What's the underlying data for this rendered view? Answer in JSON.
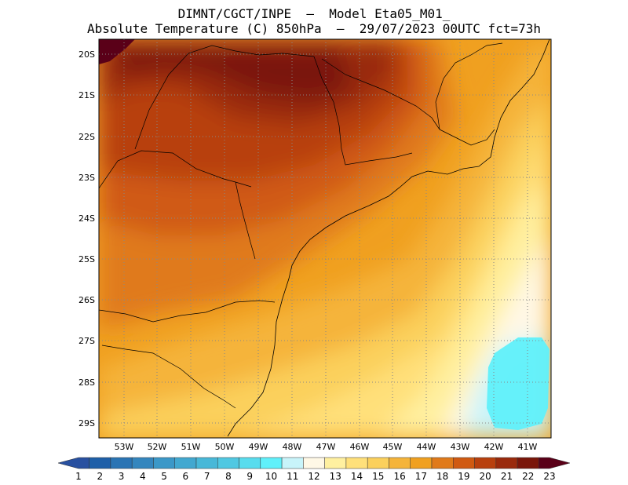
{
  "header": {
    "line1": "DIMNT/CGCT/INPE  –  Model Eta05_M01_",
    "line2": "Absolute Temperature (C) 850hPa  –  29/07/2023 00UTC fct=73h"
  },
  "map": {
    "lat_range": [
      -29.4,
      -19.8
    ],
    "lon_range": [
      -53.8,
      -40.4
    ],
    "lat_ticks": [
      "20S",
      "21S",
      "22S",
      "23S",
      "24S",
      "25S",
      "26S",
      "27S",
      "28S",
      "29S"
    ],
    "lon_ticks": [
      "53W",
      "52W",
      "51W",
      "50W",
      "49W",
      "48W",
      "47W",
      "46W",
      "45W",
      "44W",
      "43W",
      "42W",
      "41W"
    ],
    "grid": true,
    "field": "temperature",
    "units": "C"
  },
  "colorbar": {
    "labels": [
      "1",
      "2",
      "3",
      "4",
      "5",
      "6",
      "7",
      "8",
      "9",
      "10",
      "11",
      "12",
      "13",
      "14",
      "15",
      "16",
      "17",
      "18",
      "19",
      "20",
      "21",
      "22",
      "23"
    ],
    "colors": [
      "#2850a0",
      "#1e5fa8",
      "#2a74b4",
      "#3486be",
      "#3b98c8",
      "#42a8d0",
      "#48b8d8",
      "#50c8e2",
      "#58dcee",
      "#60f0fa",
      "#c8f4fa",
      "#fff8e6",
      "#fff0a0",
      "#ffe07a",
      "#fbd05c",
      "#f5b43a",
      "#f0a020",
      "#e07a1a",
      "#d05a12",
      "#b8400e",
      "#9a2a0c",
      "#7a160a",
      "#5a0018"
    ]
  }
}
